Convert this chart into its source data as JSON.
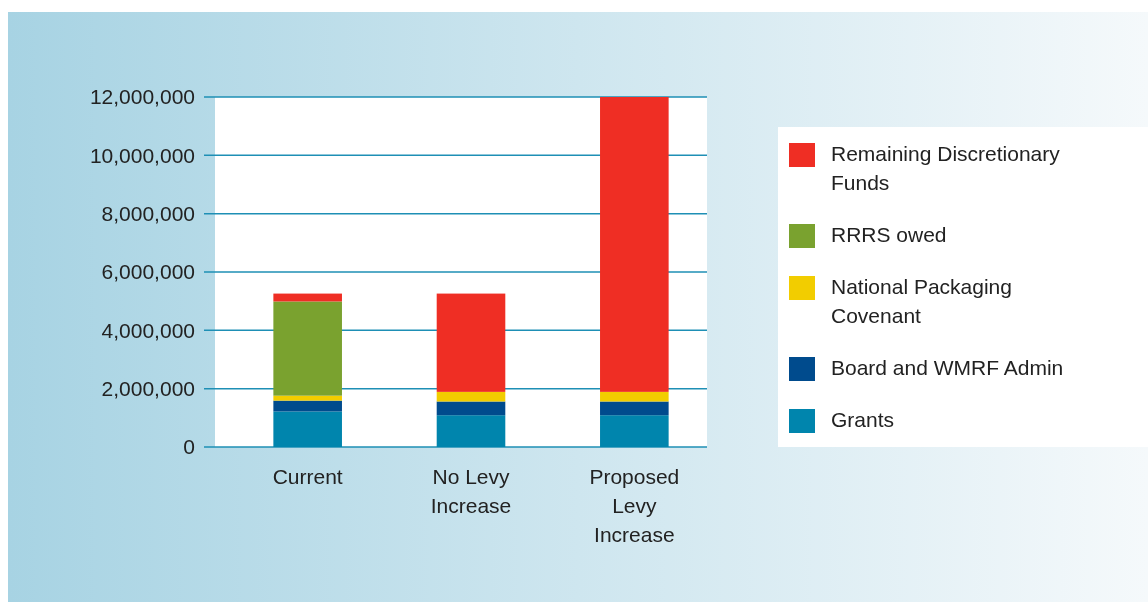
{
  "chart_data": {
    "type": "bar",
    "stacked": true,
    "categories": [
      "Current",
      "No Levy Increase",
      "Proposed Levy Increase"
    ],
    "series": [
      {
        "name": "Grants",
        "color": "#0085ad",
        "values": [
          1220000,
          1090000,
          1090000
        ]
      },
      {
        "name": "Board and WMRF Admin",
        "color": "#004b8d",
        "values": [
          370000,
          470000,
          470000
        ]
      },
      {
        "name": "National Packaging Covenant",
        "color": "#f2cd00",
        "values": [
          170000,
          330000,
          330000
        ]
      },
      {
        "name": "RRRS owed",
        "color": "#7aa22f",
        "values": [
          3230000,
          0,
          0
        ]
      },
      {
        "name": "Remaining Discretionary Funds",
        "color": "#ef2e24",
        "values": [
          270000,
          3370000,
          10110000
        ]
      }
    ],
    "ylim": [
      0,
      12000000
    ],
    "yticks": [
      {
        "value": 0,
        "label": "0"
      },
      {
        "value": 2000000,
        "label": "2,000,000"
      },
      {
        "value": 4000000,
        "label": "4,000,000"
      },
      {
        "value": 6000000,
        "label": "6,000,000"
      },
      {
        "value": 8000000,
        "label": "8,000,000"
      },
      {
        "value": 10000000,
        "label": "10,000,000"
      },
      {
        "value": 12000000,
        "label": "12,000,000"
      }
    ],
    "grid": "y",
    "legend": "right"
  }
}
